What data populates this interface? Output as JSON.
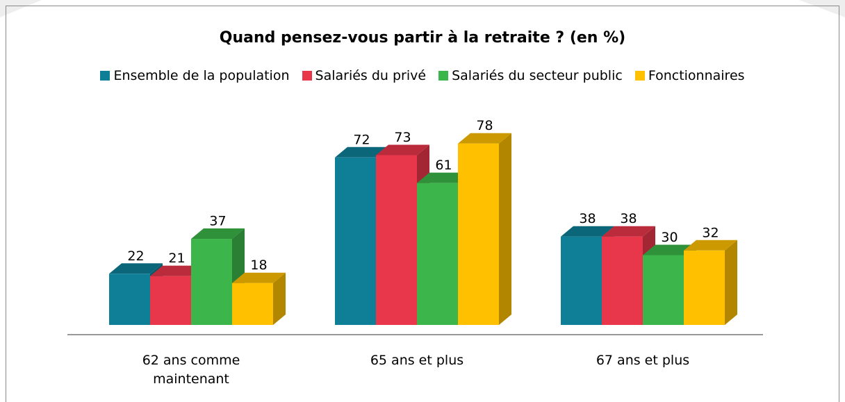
{
  "chart_data": {
    "type": "bar3d",
    "title": "Quand pensez-vous partir à la retraite ? (en %)",
    "categories": [
      "62 ans comme maintenant",
      "65 ans et plus",
      "67 ans et plus"
    ],
    "series": [
      {
        "name": "Ensemble de la population",
        "color": "#0e7f97",
        "values": [
          22,
          72,
          38
        ]
      },
      {
        "name": "Salariés du privé",
        "color": "#e8364a",
        "values": [
          21,
          73,
          38
        ]
      },
      {
        "name": "Salariés du secteur public",
        "color": "#3cb54a",
        "values": [
          37,
          61,
          30
        ]
      },
      {
        "name": "Fonctionnaires",
        "color": "#ffc000",
        "values": [
          18,
          78,
          32
        ]
      }
    ]
  }
}
